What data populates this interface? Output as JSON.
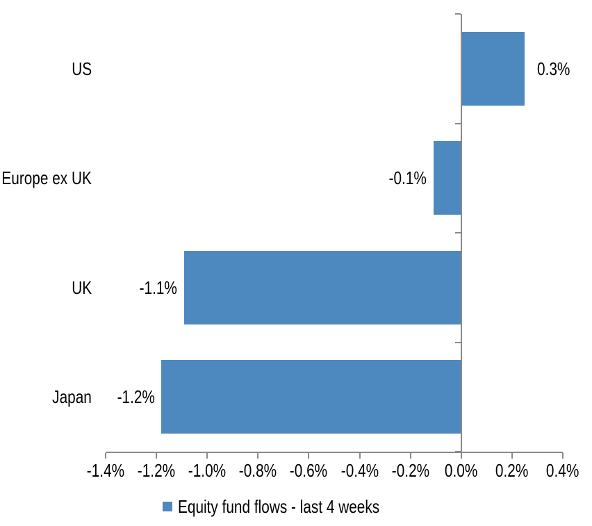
{
  "chart_data": {
    "type": "bar",
    "orientation": "horizontal",
    "title": "",
    "xlabel": "",
    "ylabel": "",
    "categories": [
      "US",
      "Europe ex UK",
      "UK",
      "Japan"
    ],
    "values": [
      0.3,
      -0.1,
      -1.1,
      -1.2
    ],
    "values_precise": [
      0.25,
      -0.11,
      -1.09,
      -1.18
    ],
    "data_labels": [
      "0.3%",
      "-0.1%",
      "-1.1%",
      "-1.2%"
    ],
    "series": [
      {
        "name": "Equity fund flows - last 4 weeks",
        "values": [
          0.3,
          -0.1,
          -1.1,
          -1.2
        ]
      }
    ],
    "xlim": [
      -1.4,
      0.4
    ],
    "x_tick_values": [
      -1.4,
      -1.2,
      -1.0,
      -0.8,
      -0.6,
      -0.4,
      -0.2,
      0.0,
      0.2,
      0.4
    ],
    "x_tick_labels": [
      "-1.4%",
      "-1.2%",
      "-1.0%",
      "-0.8%",
      "-0.6%",
      "-0.4%",
      "-0.2%",
      "0.0%",
      "0.2%",
      "0.4%"
    ],
    "grid": false,
    "legend_position": "bottom",
    "colors": {
      "bar": "#4D89BE",
      "axis": "#8a8a8a",
      "text": "#000000",
      "background": "#ffffff"
    }
  },
  "legend": {
    "label": "Equity fund flows - last 4 weeks"
  }
}
